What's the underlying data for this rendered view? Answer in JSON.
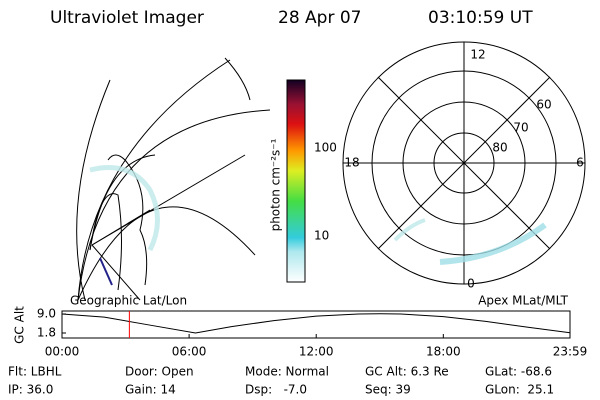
{
  "header": {
    "title": "Ultraviolet Imager",
    "date": "28 Apr 07",
    "time": "03:10:59 UT"
  },
  "colorbar": {
    "label": "photon cm⁻²s⁻¹",
    "ticks": [
      "100",
      "10"
    ]
  },
  "geo_map": {
    "label": "Geographic Lat/Lon"
  },
  "polar_map": {
    "label": "Apex MLat/MLT",
    "mlt_labels": [
      "12",
      "18",
      "6",
      "0"
    ],
    "lat_labels": [
      "60",
      "70",
      "80"
    ]
  },
  "status": [
    [
      "Flt: LBHL",
      "Door: Open",
      "Mode: Normal",
      "GC Alt: 6.3 Re",
      "GLat: -68.6"
    ],
    [
      "IP: 36.0",
      "Gain: 14",
      "Dsp:   -7.0",
      "Seq: 39",
      "GLon:  25.1"
    ]
  ],
  "chart_data": {
    "type": "line",
    "ylabel": "GC Alt",
    "x": [
      0,
      2,
      4,
      6.3,
      8,
      10,
      12,
      14,
      15,
      16,
      18,
      20,
      22,
      23.98
    ],
    "series": [
      {
        "name": "GC Alt",
        "color": "#000000",
        "values": [
          9.0,
          7.8,
          5.0,
          1.8,
          4.2,
          6.5,
          8.2,
          9.0,
          9.1,
          9.0,
          8.0,
          6.2,
          4.0,
          1.9
        ]
      }
    ],
    "current_time": 3.18,
    "marker_color": "#ff0000",
    "xlim": [
      0,
      23.98
    ],
    "ylim": [
      1.8,
      9.0
    ],
    "xticks": [
      {
        "value": 0,
        "label": "00:00"
      },
      {
        "value": 6,
        "label": "06:00"
      },
      {
        "value": 12,
        "label": "12:00"
      },
      {
        "value": 18,
        "label": "18:00"
      },
      {
        "value": 23.98,
        "label": "23:59"
      }
    ],
    "yticks": [
      {
        "value": 9.0,
        "label": "9.0"
      },
      {
        "value": 1.8,
        "label": "1.8"
      }
    ]
  }
}
